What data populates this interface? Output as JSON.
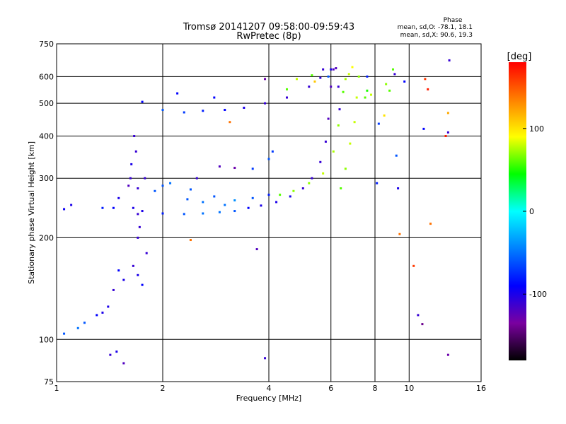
{
  "chart_data": {
    "type": "scatter",
    "title": "Tromsø 20141207 09:58:00-09:59:43",
    "subtitle": "RwPretec (8p)",
    "xlabel": "Frequency [MHz]",
    "ylabel": "Stationary phase Virtual Height [km]",
    "x_scale": "log",
    "y_scale": "log",
    "xlim": [
      1,
      16
    ],
    "ylim": [
      75,
      750
    ],
    "x_ticks": [
      1,
      2,
      4,
      6,
      8,
      10,
      16
    ],
    "y_ticks": [
      75,
      100,
      200,
      300,
      400,
      500,
      600,
      750
    ],
    "grid": true,
    "stats": {
      "heading": "Phase",
      "line_o": "mean, sd,O: -78.1, 18.1",
      "line_x": "mean, sd,X:  90.6, 19.3"
    },
    "colorbar": {
      "label": "[deg]",
      "range": [
        -180,
        180
      ],
      "ticks": [
        100,
        0,
        -100
      ],
      "colors": [
        "#000000",
        "#7a00a0",
        "#0000ff",
        "#0080ff",
        "#00ffff",
        "#00ff00",
        "#ffff00",
        "#ff8000",
        "#ff0000"
      ]
    },
    "series": [
      {
        "points": [
          [
            1.05,
            243,
            -95
          ],
          [
            1.1,
            250,
            -100
          ],
          [
            1.35,
            245,
            -80
          ],
          [
            1.45,
            245,
            -90
          ],
          [
            1.5,
            262,
            -100
          ],
          [
            1.6,
            285,
            -120
          ],
          [
            1.7,
            235,
            -110
          ],
          [
            1.75,
            240,
            -100
          ],
          [
            2.0,
            236,
            -80
          ],
          [
            2.3,
            235,
            -60
          ],
          [
            2.6,
            236,
            -50
          ],
          [
            2.9,
            238,
            -50
          ],
          [
            3.2,
            240,
            -60
          ],
          [
            3.5,
            245,
            -90
          ],
          [
            3.8,
            249,
            -100
          ],
          [
            4.2,
            255,
            -100
          ],
          [
            4.6,
            265,
            -100
          ],
          [
            5.0,
            280,
            -110
          ],
          [
            5.3,
            300,
            -110
          ],
          [
            5.6,
            335,
            -110
          ],
          [
            5.8,
            385,
            -110
          ],
          [
            5.9,
            450,
            -120
          ],
          [
            6.0,
            560,
            -120
          ],
          [
            6.1,
            630,
            -120
          ],
          [
            6.2,
            635,
            -120
          ],
          [
            6.3,
            560,
            -110
          ],
          [
            6.35,
            480,
            -110
          ],
          [
            1.7,
            280,
            -110
          ],
          [
            2.0,
            285,
            -60
          ],
          [
            2.4,
            278,
            -60
          ],
          [
            2.8,
            265,
            -60
          ],
          [
            3.2,
            258,
            -40
          ],
          [
            3.6,
            262,
            -60
          ],
          [
            4.0,
            268,
            -80
          ],
          [
            1.65,
            165,
            -110
          ],
          [
            1.7,
            155,
            -100
          ],
          [
            1.75,
            145,
            -90
          ],
          [
            1.55,
            150,
            -100
          ],
          [
            1.45,
            140,
            -110
          ],
          [
            1.4,
            125,
            -100
          ],
          [
            1.35,
            120,
            -100
          ],
          [
            1.3,
            118,
            -90
          ],
          [
            1.2,
            112,
            -60
          ],
          [
            1.15,
            108,
            -50
          ],
          [
            1.05,
            104,
            -60
          ],
          [
            1.7,
            200,
            -110
          ],
          [
            1.72,
            215,
            -110
          ],
          [
            1.68,
            360,
            -110
          ],
          [
            1.66,
            400,
            -110
          ],
          [
            1.63,
            330,
            -100
          ],
          [
            1.62,
            300,
            -110
          ],
          [
            1.48,
            92,
            -100
          ],
          [
            1.42,
            90,
            -110
          ],
          [
            1.55,
            85,
            -120
          ],
          [
            1.75,
            505,
            -90
          ],
          [
            2.0,
            478,
            -60
          ],
          [
            2.3,
            470,
            -70
          ],
          [
            2.6,
            475,
            -80
          ],
          [
            3.0,
            478,
            -90
          ],
          [
            3.4,
            485,
            -100
          ],
          [
            3.9,
            500,
            -110
          ],
          [
            4.5,
            520,
            -110
          ],
          [
            5.2,
            560,
            -110
          ],
          [
            5.6,
            595,
            -110
          ],
          [
            6.0,
            630,
            -100
          ],
          [
            5.7,
            630,
            -110
          ],
          [
            2.2,
            535,
            -90
          ],
          [
            2.8,
            520,
            -90
          ],
          [
            6.4,
            280,
            60
          ],
          [
            6.6,
            320,
            70
          ],
          [
            6.8,
            380,
            80
          ],
          [
            7.0,
            440,
            80
          ],
          [
            7.1,
            520,
            80
          ],
          [
            7.2,
            600,
            70
          ],
          [
            6.5,
            540,
            60
          ],
          [
            6.3,
            430,
            70
          ],
          [
            6.1,
            360,
            75
          ],
          [
            5.7,
            310,
            80
          ],
          [
            5.2,
            290,
            70
          ],
          [
            4.7,
            275,
            70
          ],
          [
            4.3,
            268,
            60
          ],
          [
            4.8,
            590,
            80
          ],
          [
            5.3,
            605,
            60
          ],
          [
            4.5,
            550,
            60
          ],
          [
            3.9,
            590,
            -130
          ],
          [
            3.9,
            88,
            -110
          ],
          [
            3.1,
            440,
            140
          ],
          [
            2.4,
            197,
            140
          ],
          [
            3.7,
            185,
            -120
          ],
          [
            7.6,
            545,
            50
          ],
          [
            7.8,
            530,
            80
          ],
          [
            8.6,
            570,
            70
          ],
          [
            8.8,
            545,
            60
          ],
          [
            9.1,
            610,
            -110
          ],
          [
            9.0,
            630,
            60
          ],
          [
            9.7,
            580,
            -90
          ],
          [
            9.2,
            350,
            -60
          ],
          [
            9.3,
            280,
            -100
          ],
          [
            9.4,
            205,
            140
          ],
          [
            8.1,
            290,
            -80
          ],
          [
            8.2,
            435,
            -70
          ],
          [
            8.5,
            460,
            100
          ],
          [
            10.3,
            165,
            160
          ],
          [
            10.6,
            118,
            -110
          ],
          [
            10.9,
            111,
            -140
          ],
          [
            11.1,
            590,
            160
          ],
          [
            11.3,
            550,
            170
          ],
          [
            11.0,
            420,
            -90
          ],
          [
            11.5,
            220,
            140
          ],
          [
            12.7,
            400,
            170
          ],
          [
            12.9,
            468,
            120
          ],
          [
            12.9,
            410,
            -110
          ],
          [
            13.0,
            670,
            -110
          ],
          [
            12.9,
            90,
            -130
          ],
          [
            7.6,
            600,
            -80
          ],
          [
            7.5,
            520,
            60
          ],
          [
            6.9,
            640,
            90
          ],
          [
            6.75,
            610,
            80
          ],
          [
            6.6,
            590,
            75
          ],
          [
            5.9,
            600,
            -60
          ],
          [
            5.4,
            580,
            110
          ],
          [
            4.1,
            360,
            -70
          ],
          [
            4.0,
            342,
            -60
          ],
          [
            3.6,
            320,
            -70
          ],
          [
            3.2,
            322,
            -130
          ],
          [
            2.9,
            325,
            -120
          ],
          [
            2.5,
            300,
            -110
          ],
          [
            2.1,
            290,
            -50
          ],
          [
            1.9,
            275,
            -60
          ],
          [
            1.65,
            245,
            -100
          ],
          [
            2.35,
            260,
            -60
          ],
          [
            2.6,
            255,
            -50
          ],
          [
            3.0,
            250,
            -50
          ],
          [
            1.8,
            180,
            -110
          ],
          [
            1.78,
            300,
            -110
          ],
          [
            1.5,
            160,
            -90
          ]
        ]
      }
    ]
  }
}
